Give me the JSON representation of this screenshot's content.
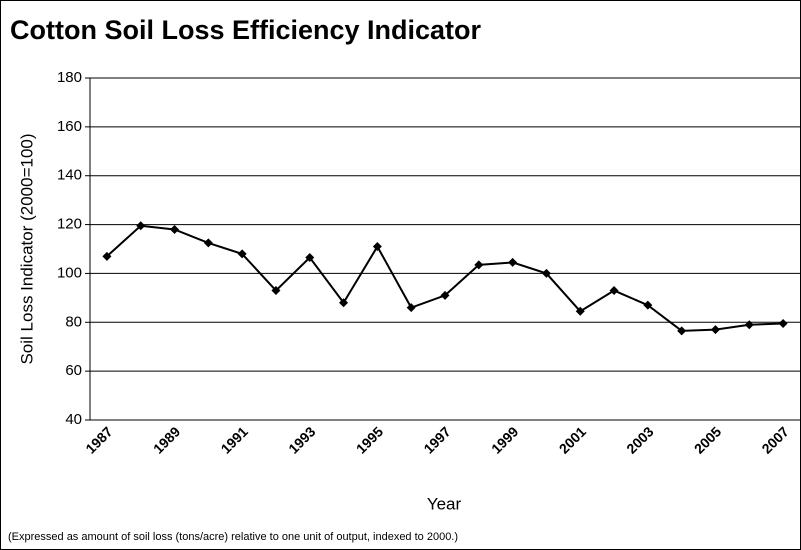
{
  "chart_data": {
    "type": "line",
    "title": "Cotton Soil Loss Efficiency Indicator",
    "y_label": "Soil Loss Indicator (2000=100)",
    "x_label": "Year",
    "note": "(Expressed as amount of soil loss (tons/acre) relative to one unit of output, indexed to 2000.)",
    "categories": [
      "1987",
      null,
      "1989",
      null,
      "1991",
      null,
      "1993",
      null,
      "1995",
      null,
      "1997",
      null,
      "1999",
      null,
      "2001",
      null,
      "2003",
      null,
      "2005",
      null,
      "2007"
    ],
    "values": [
      107,
      119.5,
      118,
      112.5,
      108,
      93,
      106.5,
      88,
      111,
      86,
      91,
      103.5,
      104.5,
      100,
      84.5,
      93,
      87,
      76.5,
      77,
      79,
      79.5
    ],
    "color": "#000000",
    "ylim": [
      40,
      180
    ],
    "yticks": [
      40,
      60,
      80,
      100,
      120,
      140,
      160,
      180
    ],
    "grid": true
  }
}
